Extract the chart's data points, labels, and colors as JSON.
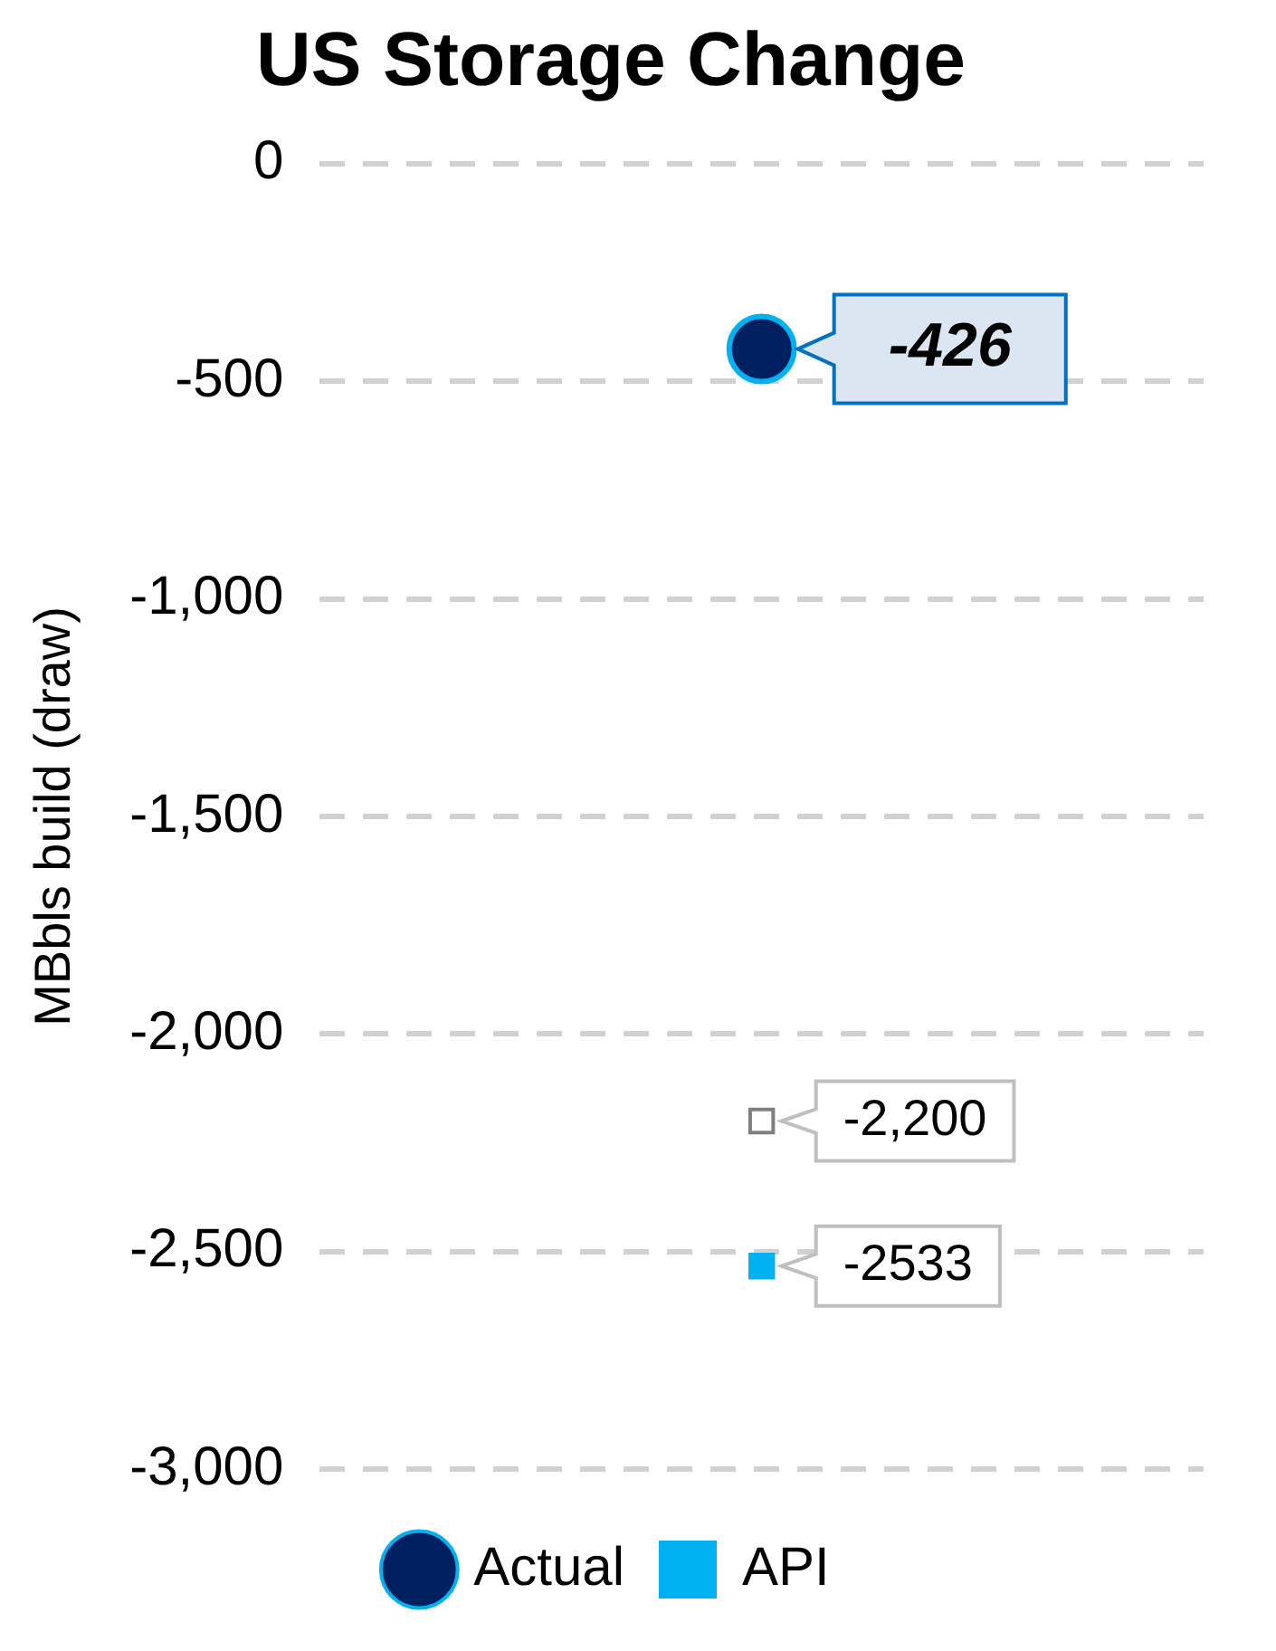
{
  "chart_data": {
    "type": "scatter",
    "title": "US Storage Change",
    "ylabel": "MBbls build (draw)",
    "categories": [
      null
    ],
    "series": [
      {
        "color": "#ffffff",
        "marker": "square",
        "values": [
          -2200
        ],
        "value_labels": [
          "-2,200"
        ]
      },
      {
        "name": "Actual",
        "color": "#002060",
        "marker": "circle",
        "values": [
          -426
        ],
        "value_labels": [
          "-426"
        ]
      },
      {
        "name": "API",
        "color": "#00b0f0",
        "marker": "square",
        "values": [
          -2533
        ],
        "value_labels": [
          "-2533"
        ]
      }
    ],
    "ylim": [
      -3000,
      0
    ],
    "yticks": [
      {
        "value": -3000,
        "label": "-3,000"
      },
      {
        "value": -2500,
        "label": "-2,500"
      },
      {
        "value": -2000,
        "label": "-2,000"
      },
      {
        "value": -1500,
        "label": "-1,500"
      },
      {
        "value": -1000,
        "label": "-1,000"
      },
      -500,
      0
    ],
    "grid": "y",
    "legend": "bottom"
  }
}
